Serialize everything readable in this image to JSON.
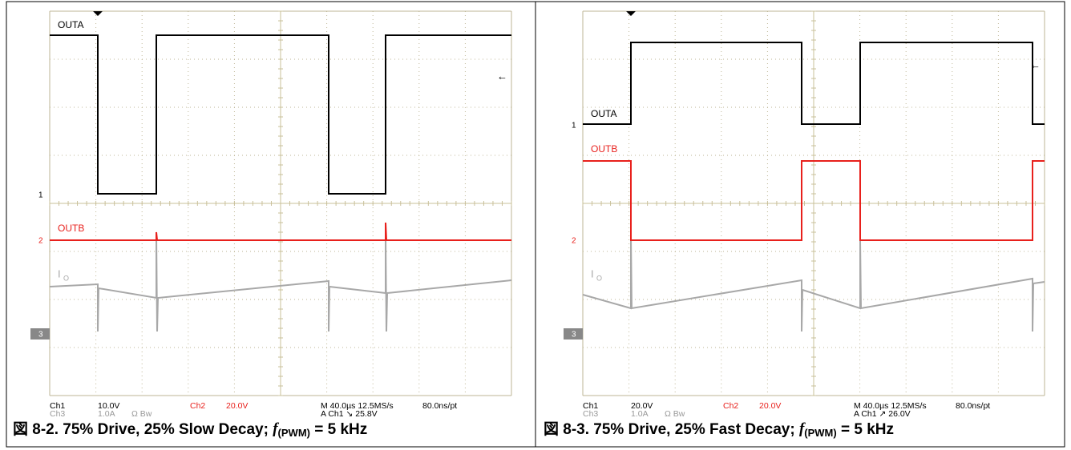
{
  "figures": [
    {
      "caption": {
        "prefix": "図 8-2. 75% Drive, 25% Slow Decay; ",
        "f": "f",
        "sub": "(PWM)",
        "suffix": " = 5 kHz"
      },
      "scope": {
        "labels": {
          "ch1": "OUTA",
          "ch2": "OUTB",
          "ch3": "I",
          "ch3_sub": "O"
        },
        "markers": [
          "1",
          "2",
          "3"
        ],
        "readout": {
          "ch1": "Ch1",
          "ch1_scale": "10.0V",
          "ch3": "Ch3",
          "ch3_scale": "1.0A",
          "bw": "Ω Bw",
          "ch2": "Ch2",
          "ch2_scale": "20.0V",
          "timebase": "M 40.0µs 12.5MS/s",
          "resolution": "80.0ns/pt",
          "trigger": "A Ch1 ↘ 25.8V"
        }
      }
    },
    {
      "caption": {
        "prefix": "図 8-3. 75% Drive, 25% Fast Decay; ",
        "f": "f",
        "sub": "(PWM)",
        "suffix": " = 5 kHz"
      },
      "scope": {
        "labels": {
          "ch1": "OUTA",
          "ch2": "OUTB",
          "ch3": "I",
          "ch3_sub": "O"
        },
        "markers": [
          "1",
          "2",
          "3"
        ],
        "readout": {
          "ch1": "Ch1",
          "ch1_scale": "20.0V",
          "ch3": "Ch3",
          "ch3_scale": "1.0A",
          "bw": "Ω Bw",
          "ch2": "Ch2",
          "ch2_scale": "20.0V",
          "timebase": "M 40.0µs 12.5MS/s",
          "resolution": "80.0ns/pt",
          "trigger": "A Ch1 ↗ 26.0V"
        }
      }
    }
  ]
}
